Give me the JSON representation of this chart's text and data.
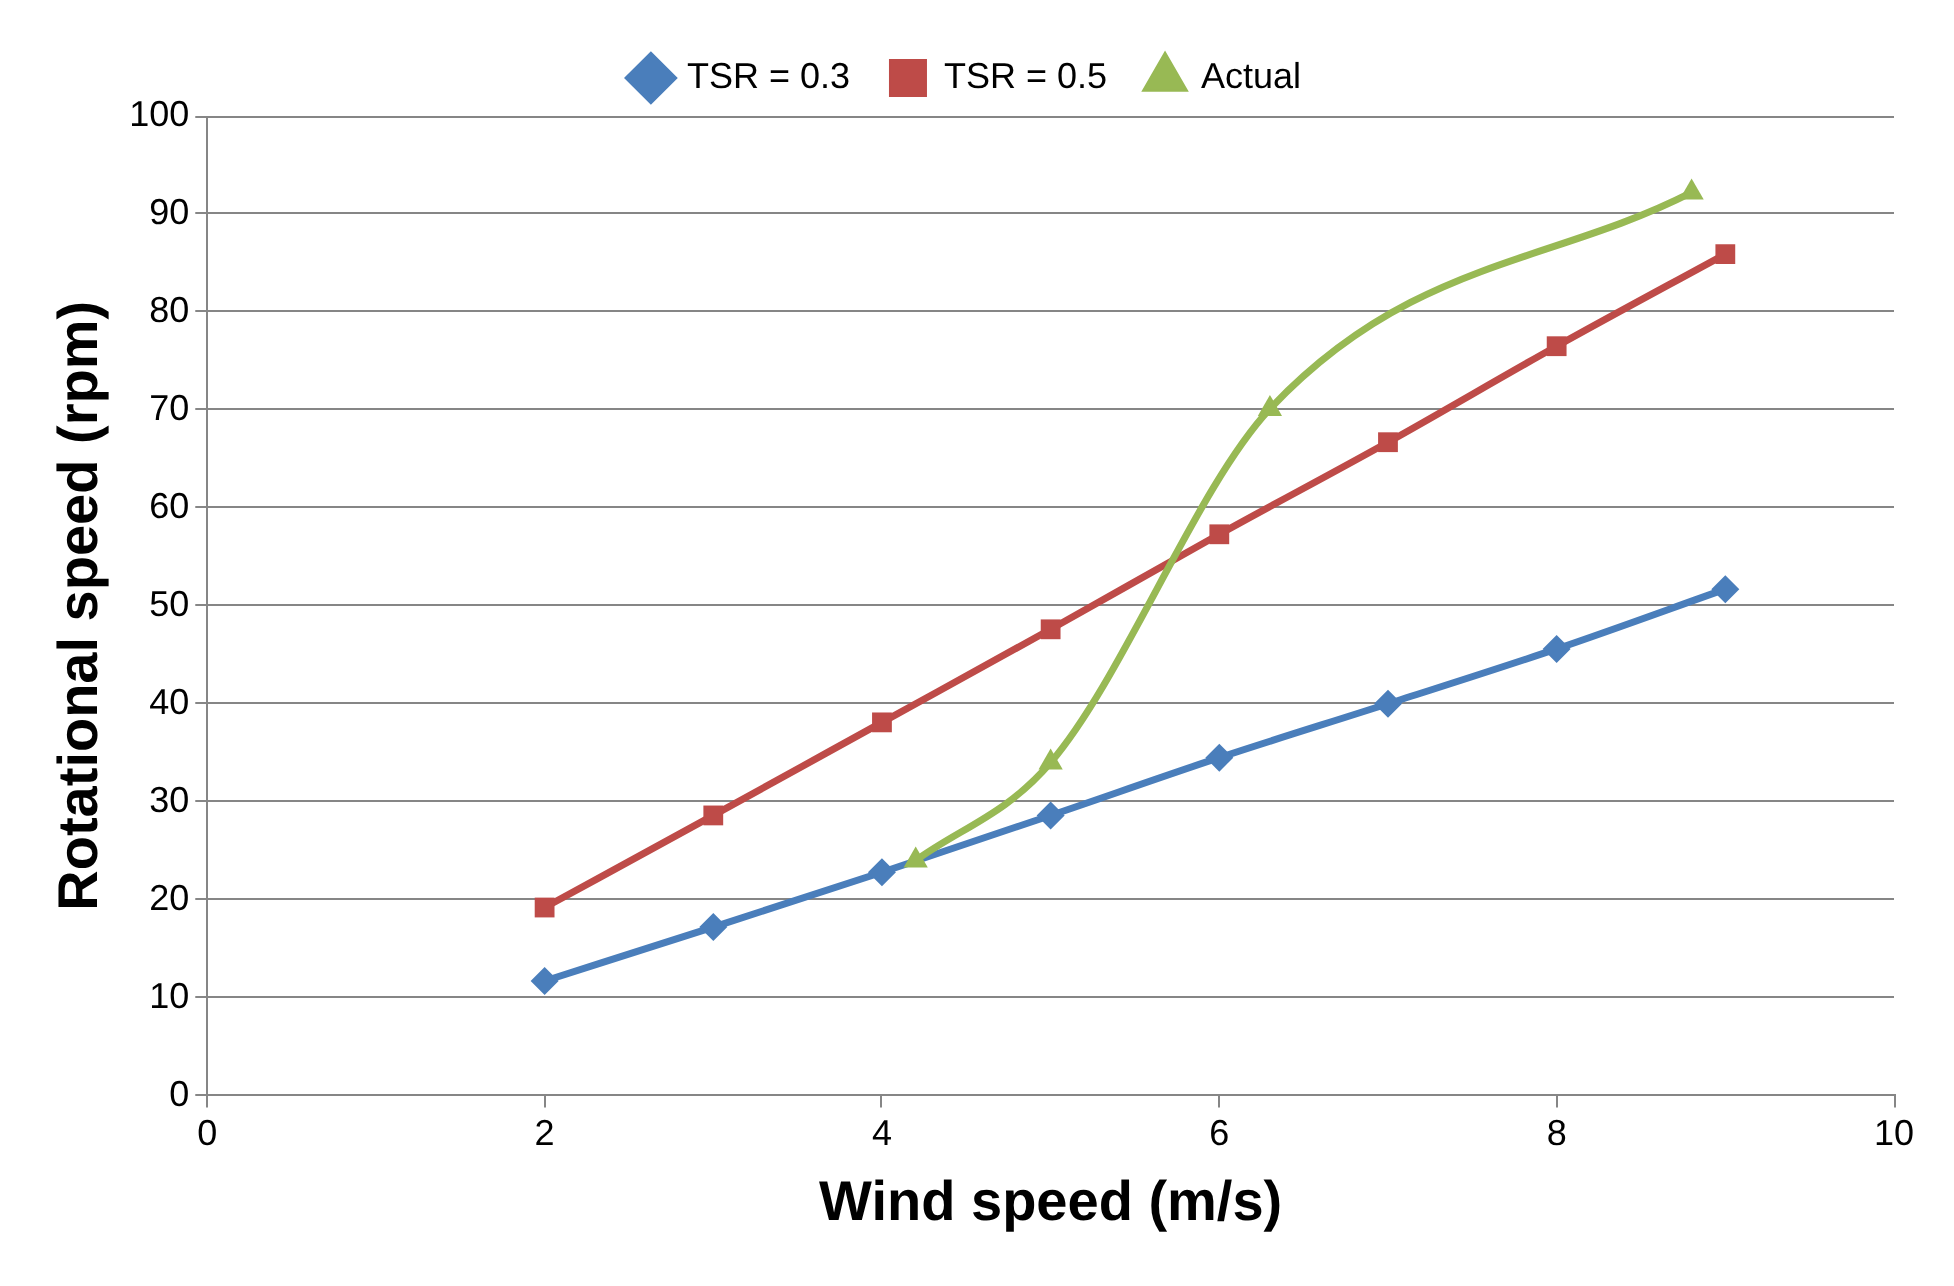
{
  "chart_data": {
    "type": "line",
    "xlabel": "Wind speed (m/s)",
    "ylabel": "Rotational speed (rpm)",
    "xlim": [
      0,
      10
    ],
    "xticks": [
      0,
      2,
      4,
      6,
      8,
      10
    ],
    "ylim": [
      0,
      100
    ],
    "yticks": [
      0,
      10,
      20,
      30,
      40,
      50,
      60,
      70,
      80,
      90,
      100
    ],
    "grid": "y",
    "legend": "top",
    "line_style": "solid",
    "series": [
      {
        "name": "TSR = 0.3",
        "color": "#4a7ebb",
        "marker": "diamond",
        "x": [
          2,
          3,
          4,
          5,
          6,
          7,
          8,
          9
        ],
        "values": [
          11.7,
          17.2,
          22.8,
          28.6,
          34.5,
          40.0,
          45.6,
          51.7
        ]
      },
      {
        "name": "TSR = 0.5",
        "color": "#be4b48",
        "marker": "square",
        "x": [
          2,
          3,
          4,
          5,
          6,
          7,
          8,
          9
        ],
        "values": [
          19.2,
          28.6,
          38.1,
          47.6,
          57.3,
          66.7,
          76.5,
          85.9
        ]
      },
      {
        "name": "Actual",
        "color": "#98b954",
        "marker": "triangle",
        "x": [
          4.2,
          5.0,
          6.3,
          8.8
        ],
        "values": [
          24.0,
          34.0,
          70.1,
          92.2
        ]
      }
    ]
  }
}
